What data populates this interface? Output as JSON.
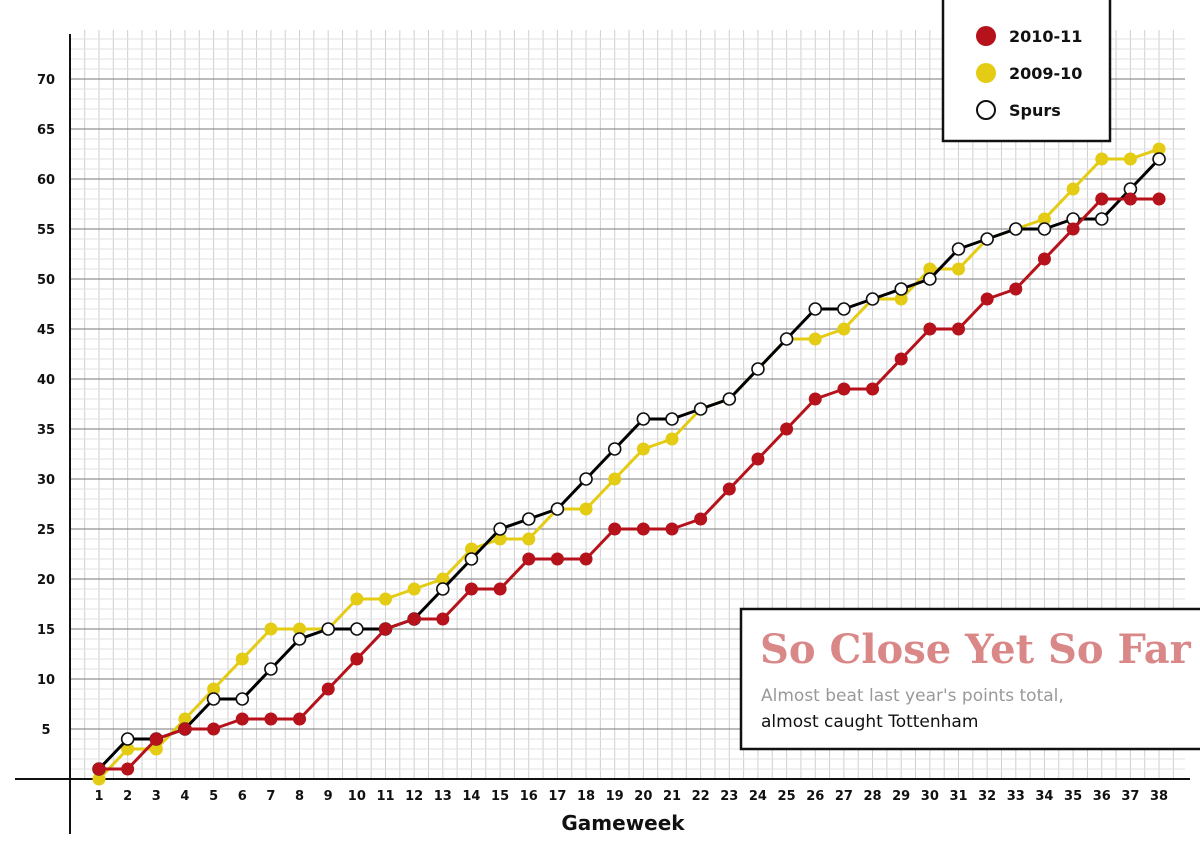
{
  "chart_data": {
    "type": "line",
    "title": "So Close Yet So Far",
    "subtitle_line1": "Almost beat last year's points total,",
    "subtitle_line2": "almost caught Tottenham",
    "xlabel": "Gameweek",
    "ylabel": "",
    "x": [
      1,
      2,
      3,
      4,
      5,
      6,
      7,
      8,
      9,
      10,
      11,
      12,
      13,
      14,
      15,
      16,
      17,
      18,
      19,
      20,
      21,
      22,
      23,
      24,
      25,
      26,
      27,
      28,
      29,
      30,
      31,
      32,
      33,
      34,
      35,
      36,
      37,
      38
    ],
    "xlim": [
      0,
      38.5
    ],
    "ylim": [
      -0.5,
      74.5
    ],
    "yticks": [
      5,
      10,
      15,
      20,
      25,
      30,
      35,
      40,
      45,
      50,
      55,
      60,
      65,
      70
    ],
    "grid": true,
    "legend_position": "top-right",
    "series": [
      {
        "name": "2009-10",
        "color": "#e4cc14",
        "values": [
          0,
          3,
          3,
          6,
          9,
          12,
          15,
          15,
          15,
          18,
          18,
          19,
          20,
          23,
          24,
          24,
          27,
          27,
          30,
          33,
          34,
          37,
          38,
          41,
          44,
          44,
          45,
          48,
          48,
          51,
          51,
          54,
          55,
          56,
          59,
          62,
          62,
          63
        ]
      },
      {
        "name": "Spurs",
        "color": "#000000",
        "values": [
          1,
          4,
          4,
          5,
          8,
          8,
          11,
          14,
          15,
          15,
          15,
          16,
          19,
          22,
          25,
          26,
          27,
          30,
          33,
          36,
          36,
          37,
          38,
          41,
          44,
          47,
          47,
          48,
          49,
          50,
          53,
          54,
          55,
          55,
          56,
          56,
          59,
          62
        ]
      },
      {
        "name": "2010-11",
        "color": "#b5121b",
        "values": [
          1,
          1,
          4,
          5,
          5,
          6,
          6,
          6,
          9,
          12,
          15,
          16,
          16,
          19,
          19,
          22,
          22,
          22,
          25,
          25,
          25,
          26,
          29,
          32,
          35,
          38,
          39,
          39,
          42,
          45,
          45,
          48,
          49,
          52,
          55,
          58,
          58,
          58
        ]
      }
    ]
  },
  "legend": {
    "items": [
      {
        "label": "2010-11",
        "color": "#b5121b"
      },
      {
        "label": "2009-10",
        "color": "#e4cc14"
      },
      {
        "label": "Spurs",
        "color": "#ffffff"
      }
    ]
  }
}
